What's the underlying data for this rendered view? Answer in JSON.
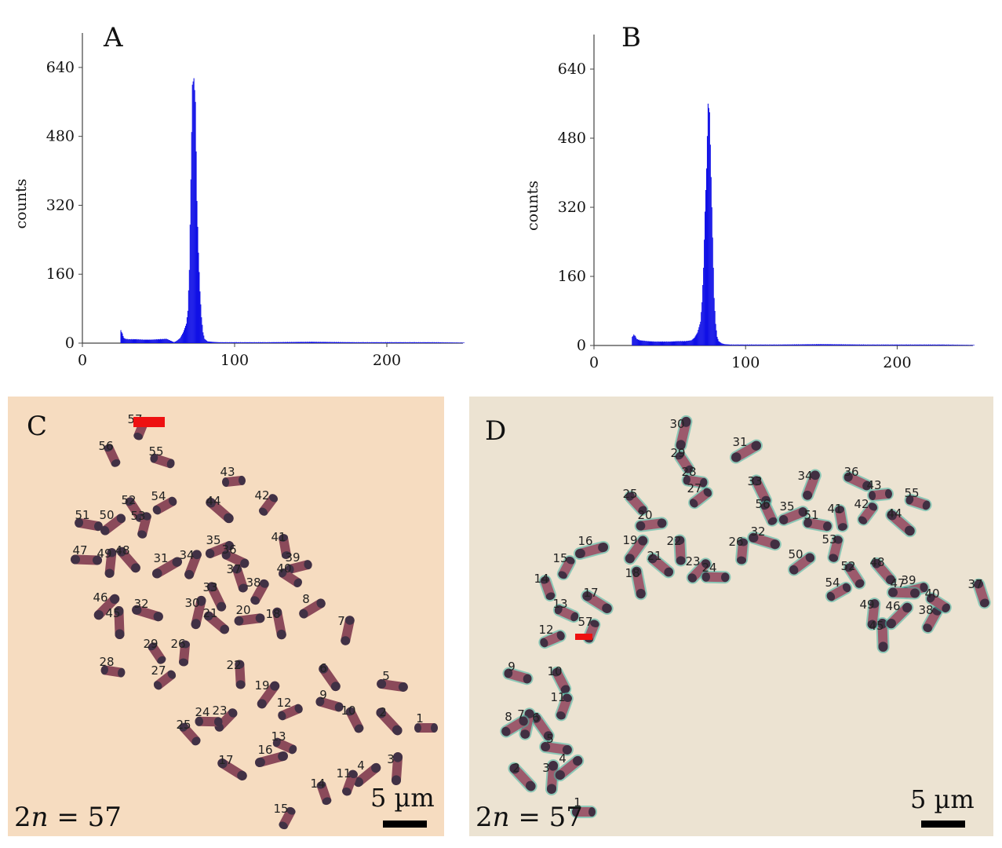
{
  "panels": {
    "A": {
      "letter": "A",
      "ylabel": "counts"
    },
    "B": {
      "letter": "B",
      "ylabel": "counts"
    },
    "C": {
      "letter": "C",
      "ploidy_prefix": "2",
      "ploidy_var": "n",
      "ploidy_suffix": " = 57",
      "scale_label": "5 µm",
      "chromosome_labels": [
        "1",
        "2",
        "3",
        "4",
        "5",
        "6",
        "7",
        "8",
        "9",
        "10",
        "11",
        "12",
        "13",
        "14",
        "15",
        "16",
        "17",
        "18",
        "19",
        "20",
        "21",
        "22",
        "23",
        "24",
        "25",
        "26",
        "27",
        "28",
        "29",
        "30",
        "31",
        "32",
        "33",
        "34",
        "35",
        "36",
        "37",
        "38",
        "39",
        "40",
        "41",
        "42",
        "43",
        "44",
        "45",
        "46",
        "47",
        "48",
        "49",
        "50",
        "51",
        "52",
        "53",
        "54",
        "55",
        "56",
        "57"
      ]
    },
    "D": {
      "letter": "D",
      "ploidy_prefix": "2",
      "ploidy_var": "n",
      "ploidy_suffix": " = 57",
      "scale_label": "5 µm",
      "chromosome_labels": [
        "1",
        "2",
        "3",
        "4",
        "5",
        "6",
        "7",
        "8",
        "9",
        "10",
        "11",
        "12",
        "13",
        "14",
        "15",
        "16",
        "17",
        "18",
        "19",
        "20",
        "21",
        "22",
        "23",
        "24",
        "25",
        "26",
        "27",
        "28",
        "29",
        "30",
        "31",
        "32",
        "33",
        "34",
        "35",
        "36",
        "37",
        "38",
        "39",
        "40",
        "41",
        "42",
        "43",
        "44",
        "45",
        "46",
        "47",
        "48",
        "49",
        "50",
        "51",
        "52",
        "53",
        "54",
        "55",
        "56",
        "57"
      ]
    }
  },
  "colors": {
    "histogram": "#1010e6",
    "marker": "#ee1111",
    "background_C": "#f6dcc0",
    "background_D": "#ece3d2"
  },
  "chart_data": [
    {
      "type": "bar",
      "panel": "A",
      "ylabel": "counts",
      "xlim": [
        0,
        250
      ],
      "ylim": [
        0,
        720
      ],
      "xticks": [
        0,
        100,
        200
      ],
      "yticks": [
        0,
        160,
        320,
        480,
        640
      ],
      "series": [
        {
          "x": [
            25,
            26,
            27,
            28,
            30,
            35,
            40,
            45,
            50,
            55,
            60,
            62,
            64,
            66,
            68,
            69,
            70,
            71,
            72,
            73,
            74,
            75,
            76,
            77,
            78,
            79,
            80,
            82,
            85,
            90,
            100,
            120,
            150,
            180,
            200,
            230,
            250
          ],
          "values": [
            30,
            22,
            12,
            10,
            9,
            9,
            8,
            8,
            9,
            10,
            2,
            6,
            12,
            25,
            45,
            75,
            170,
            380,
            600,
            615,
            560,
            330,
            210,
            120,
            60,
            25,
            10,
            4,
            3,
            2,
            2,
            2,
            3,
            2,
            2,
            2,
            1
          ]
        }
      ]
    },
    {
      "type": "bar",
      "panel": "B",
      "ylabel": "counts",
      "xlim": [
        0,
        250
      ],
      "ylim": [
        0,
        720
      ],
      "xticks": [
        0,
        100,
        200
      ],
      "yticks": [
        0,
        160,
        320,
        480,
        640
      ],
      "series": [
        {
          "x": [
            25,
            26,
            27,
            28,
            30,
            35,
            40,
            45,
            50,
            55,
            60,
            64,
            66,
            68,
            70,
            71,
            72,
            73,
            74,
            75,
            76,
            77,
            78,
            79,
            80,
            81,
            82,
            84,
            86,
            90,
            100,
            120,
            150,
            180,
            200,
            230,
            250
          ],
          "values": [
            20,
            25,
            22,
            15,
            12,
            10,
            9,
            9,
            9,
            10,
            10,
            12,
            18,
            30,
            55,
            100,
            180,
            310,
            410,
            560,
            540,
            390,
            250,
            110,
            50,
            20,
            10,
            5,
            3,
            2,
            2,
            2,
            3,
            2,
            2,
            2,
            1
          ]
        }
      ]
    }
  ]
}
